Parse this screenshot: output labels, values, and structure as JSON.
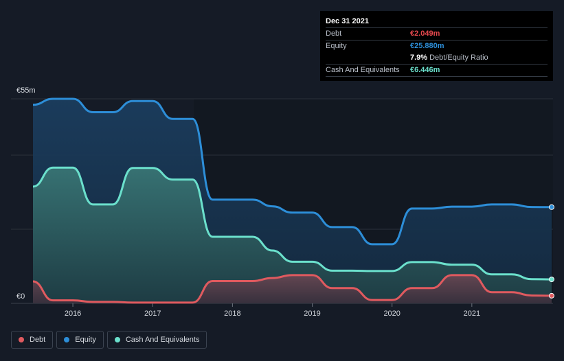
{
  "chart_data": {
    "type": "area",
    "y_top_label": "€55m",
    "y_bottom_label": "€0",
    "ylim": [
      0,
      55
    ],
    "xlim": [
      2015.5,
      2022.0
    ],
    "x_ticks": [
      {
        "label": "2016",
        "value": 2016
      },
      {
        "label": "2017",
        "value": 2017
      },
      {
        "label": "2018",
        "value": 2018
      },
      {
        "label": "2019",
        "value": 2019
      },
      {
        "label": "2020",
        "value": 2020
      },
      {
        "label": "2021",
        "value": 2021
      }
    ],
    "series": [
      {
        "name": "Equity",
        "color": "#2d8ed8",
        "points": [
          [
            2015.5,
            53.4
          ],
          [
            2015.75,
            55
          ],
          [
            2016.0,
            55
          ],
          [
            2016.25,
            51.4
          ],
          [
            2016.5,
            51.4
          ],
          [
            2016.75,
            54.4
          ],
          [
            2017.0,
            54.4
          ],
          [
            2017.25,
            49.6
          ],
          [
            2017.5,
            49.6
          ],
          [
            2017.75,
            27.9
          ],
          [
            2018.0,
            27.9
          ],
          [
            2018.25,
            27.9
          ],
          [
            2018.5,
            26.1
          ],
          [
            2018.75,
            24.4
          ],
          [
            2019.0,
            24.4
          ],
          [
            2019.25,
            20.5
          ],
          [
            2019.5,
            20.5
          ],
          [
            2019.75,
            15.9
          ],
          [
            2020.0,
            15.9
          ],
          [
            2020.25,
            25.5
          ],
          [
            2020.5,
            25.5
          ],
          [
            2020.75,
            26.0
          ],
          [
            2021.0,
            26.0
          ],
          [
            2021.25,
            26.6
          ],
          [
            2021.5,
            26.6
          ],
          [
            2021.75,
            25.9
          ],
          [
            2022.0,
            25.88
          ]
        ]
      },
      {
        "name": "Cash And Equivalents",
        "color": "#6be0cc",
        "points": [
          [
            2015.5,
            31.4
          ],
          [
            2015.75,
            36.5
          ],
          [
            2016.0,
            36.5
          ],
          [
            2016.25,
            26.6
          ],
          [
            2016.5,
            26.6
          ],
          [
            2016.75,
            36.4
          ],
          [
            2017.0,
            36.4
          ],
          [
            2017.25,
            33.3
          ],
          [
            2017.5,
            33.3
          ],
          [
            2017.75,
            17.9
          ],
          [
            2018.0,
            17.9
          ],
          [
            2018.25,
            17.9
          ],
          [
            2018.5,
            14.2
          ],
          [
            2018.75,
            11.2
          ],
          [
            2019.0,
            11.2
          ],
          [
            2019.25,
            8.8
          ],
          [
            2019.5,
            8.8
          ],
          [
            2019.75,
            8.7
          ],
          [
            2020.0,
            8.7
          ],
          [
            2020.25,
            11.1
          ],
          [
            2020.5,
            11.1
          ],
          [
            2020.75,
            10.4
          ],
          [
            2021.0,
            10.4
          ],
          [
            2021.25,
            7.8
          ],
          [
            2021.5,
            7.8
          ],
          [
            2021.75,
            6.5
          ],
          [
            2022.0,
            6.446
          ]
        ]
      },
      {
        "name": "Debt",
        "color": "#e05a5f",
        "points": [
          [
            2015.5,
            5.9
          ],
          [
            2015.75,
            0.8
          ],
          [
            2016.0,
            0.8
          ],
          [
            2016.25,
            0.4
          ],
          [
            2016.5,
            0.4
          ],
          [
            2016.75,
            0.2
          ],
          [
            2017.0,
            0.2
          ],
          [
            2017.25,
            0.2
          ],
          [
            2017.5,
            0.2
          ],
          [
            2017.75,
            6.0
          ],
          [
            2018.0,
            6.0
          ],
          [
            2018.25,
            6.0
          ],
          [
            2018.5,
            6.8
          ],
          [
            2018.75,
            7.6
          ],
          [
            2019.0,
            7.6
          ],
          [
            2019.25,
            4.1
          ],
          [
            2019.5,
            4.1
          ],
          [
            2019.75,
            0.9
          ],
          [
            2020.0,
            0.9
          ],
          [
            2020.25,
            4.1
          ],
          [
            2020.5,
            4.1
          ],
          [
            2020.75,
            7.6
          ],
          [
            2021.0,
            7.6
          ],
          [
            2021.25,
            3.0
          ],
          [
            2021.5,
            3.0
          ],
          [
            2021.75,
            2.1
          ],
          [
            2022.0,
            2.049
          ]
        ]
      }
    ]
  },
  "tooltip": {
    "date": "Dec 31 2021",
    "debt_label": "Debt",
    "debt_value": "€2.049m",
    "debt_color": "#e5484d",
    "equity_label": "Equity",
    "equity_value": "€25.880m",
    "equity_color": "#2d8ed8",
    "ratio_value": "7.9%",
    "ratio_label": "Debt/Equity Ratio",
    "cash_label": "Cash And Equivalents",
    "cash_value": "€6.446m",
    "cash_color": "#6be0cc"
  },
  "legend": [
    {
      "label": "Debt",
      "color": "#e05a5f"
    },
    {
      "label": "Equity",
      "color": "#2d8ed8"
    },
    {
      "label": "Cash And Equivalents",
      "color": "#6be0cc"
    }
  ]
}
